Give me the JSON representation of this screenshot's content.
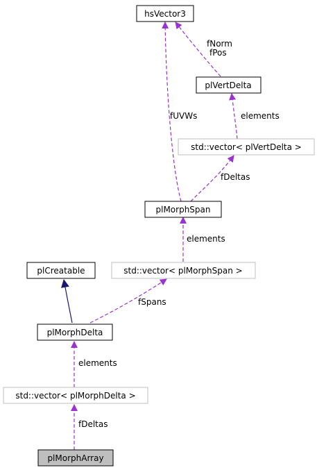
{
  "colors": {
    "background": "#ffffff",
    "node_border": "#000000",
    "template_border": "#bfbfbf",
    "highlight_fill": "#bfbfbf",
    "usage_edge": "#9a32cd",
    "inherit_edge": "#191970"
  },
  "nodes": {
    "hsVector3": "hsVector3",
    "plVertDelta": "plVertDelta",
    "vector_plVertDelta": "std::vector< plVertDelta >",
    "plMorphSpan": "plMorphSpan",
    "vector_plMorphSpan": "std::vector< plMorphSpan >",
    "plCreatable": "plCreatable",
    "plMorphDelta": "plMorphDelta",
    "vector_plMorphDelta": "std::vector< plMorphDelta >",
    "plMorphArray": "plMorphArray"
  },
  "edge_labels": {
    "fNorm": "fNorm",
    "fPos": "fPos",
    "fUVWs": "fUVWs",
    "elements_vertdelta": "elements",
    "fDeltas_span": "fDeltas",
    "elements_span": "elements",
    "fSpans": "fSpans",
    "elements_morphdelta": "elements",
    "fDeltas_array": "fDeltas"
  }
}
